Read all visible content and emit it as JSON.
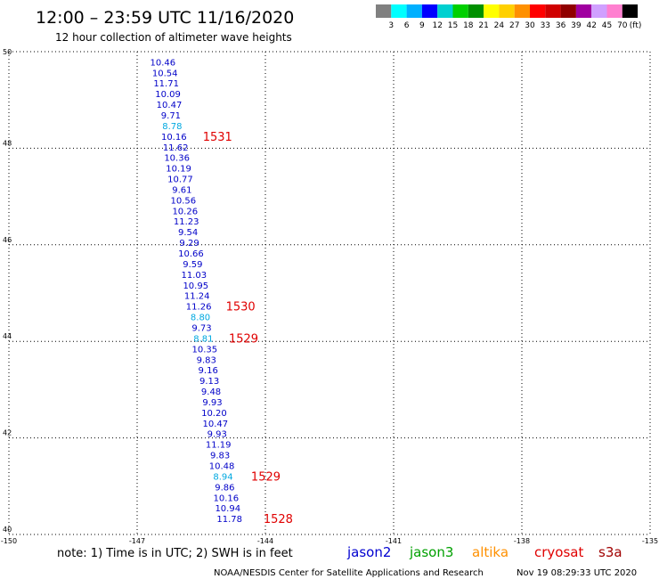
{
  "header": {
    "title": "12:00 – 23:59 UTC 11/16/2020",
    "subtitle": "12 hour collection of altimeter wave heights"
  },
  "colorbar": {
    "swatches": [
      "#808080",
      "#00ffff",
      "#00b0ff",
      "#0000ff",
      "#00d0d0",
      "#00d000",
      "#009000",
      "#ffff00",
      "#ffd000",
      "#ff9000",
      "#ff0000",
      "#d00000",
      "#900000",
      "#a000a0",
      "#d0a0ff",
      "#ff80d0",
      "#000000"
    ],
    "labels": [
      "3",
      "6",
      "9",
      "12",
      "15",
      "18",
      "21",
      "24",
      "27",
      "30",
      "33",
      "36",
      "39",
      "42",
      "45",
      "70"
    ],
    "unit": "(ft)"
  },
  "chart_data": {
    "type": "scatter",
    "xlim": [
      -150,
      -135
    ],
    "ylim": [
      40,
      50
    ],
    "x_ticks": [
      "-150",
      "-147",
      "-144",
      "-141",
      "-138",
      "-135"
    ],
    "y_ticks": [
      "50",
      "48",
      "46",
      "44",
      "42",
      "40"
    ],
    "grid": true,
    "points": [
      {
        "lon": -146.4,
        "lat": 49.79,
        "label": "10.46",
        "color": "#0000c8"
      },
      {
        "lon": -146.35,
        "lat": 49.57,
        "label": "10.54",
        "color": "#0000c8"
      },
      {
        "lon": -146.32,
        "lat": 49.35,
        "label": "11.71",
        "color": "#0000c8"
      },
      {
        "lon": -146.28,
        "lat": 49.13,
        "label": "10.09",
        "color": "#0000c8"
      },
      {
        "lon": -146.25,
        "lat": 48.91,
        "label": "10.47",
        "color": "#0000c8"
      },
      {
        "lon": -146.21,
        "lat": 48.69,
        "label": "9.71",
        "color": "#0000c8"
      },
      {
        "lon": -146.18,
        "lat": 48.47,
        "label": "8.78",
        "color": "#00a8e0"
      },
      {
        "lon": -146.14,
        "lat": 48.25,
        "label": "10.16",
        "color": "#0000c8"
      },
      {
        "lon": -146.1,
        "lat": 48.03,
        "label": "11.62",
        "color": "#0000c8"
      },
      {
        "lon": -146.07,
        "lat": 47.81,
        "label": "10.36",
        "color": "#0000c8"
      },
      {
        "lon": -146.03,
        "lat": 47.59,
        "label": "10.19",
        "color": "#0000c8"
      },
      {
        "lon": -145.99,
        "lat": 47.37,
        "label": "10.77",
        "color": "#0000c8"
      },
      {
        "lon": -145.95,
        "lat": 47.15,
        "label": "9.61",
        "color": "#0000c8"
      },
      {
        "lon": -145.92,
        "lat": 46.93,
        "label": "10.56",
        "color": "#0000c8"
      },
      {
        "lon": -145.88,
        "lat": 46.71,
        "label": "10.26",
        "color": "#0000c8"
      },
      {
        "lon": -145.85,
        "lat": 46.49,
        "label": "11.23",
        "color": "#0000c8"
      },
      {
        "lon": -145.81,
        "lat": 46.27,
        "label": "9.54",
        "color": "#0000c8"
      },
      {
        "lon": -145.78,
        "lat": 46.05,
        "label": "9.29",
        "color": "#0000c8"
      },
      {
        "lon": -145.74,
        "lat": 45.83,
        "label": "10.66",
        "color": "#0000c8"
      },
      {
        "lon": -145.7,
        "lat": 45.61,
        "label": "9.59",
        "color": "#0000c8"
      },
      {
        "lon": -145.67,
        "lat": 45.39,
        "label": "11.03",
        "color": "#0000c8"
      },
      {
        "lon": -145.63,
        "lat": 45.17,
        "label": "10.95",
        "color": "#0000c8"
      },
      {
        "lon": -145.6,
        "lat": 44.95,
        "label": "11.24",
        "color": "#0000c8"
      },
      {
        "lon": -145.56,
        "lat": 44.73,
        "label": "11.26",
        "color": "#0000c8"
      },
      {
        "lon": -145.52,
        "lat": 44.51,
        "label": "8.80",
        "color": "#00a8e0"
      },
      {
        "lon": -145.49,
        "lat": 44.29,
        "label": "9.73",
        "color": "#0000c8"
      },
      {
        "lon": -145.45,
        "lat": 44.07,
        "label": "8.81",
        "color": "#00a8e0"
      },
      {
        "lon": -145.42,
        "lat": 43.85,
        "label": "10.35",
        "color": "#0000c8"
      },
      {
        "lon": -145.38,
        "lat": 43.63,
        "label": "9.83",
        "color": "#0000c8"
      },
      {
        "lon": -145.34,
        "lat": 43.41,
        "label": "9.16",
        "color": "#0000c8"
      },
      {
        "lon": -145.31,
        "lat": 43.19,
        "label": "9.13",
        "color": "#0000c8"
      },
      {
        "lon": -145.27,
        "lat": 42.97,
        "label": "9.48",
        "color": "#0000c8"
      },
      {
        "lon": -145.24,
        "lat": 42.75,
        "label": "9.93",
        "color": "#0000c8"
      },
      {
        "lon": -145.2,
        "lat": 42.53,
        "label": "10.20",
        "color": "#0000c8"
      },
      {
        "lon": -145.17,
        "lat": 42.31,
        "label": "10.47",
        "color": "#0000c8"
      },
      {
        "lon": -145.13,
        "lat": 42.09,
        "label": "9.93",
        "color": "#0000c8"
      },
      {
        "lon": -145.1,
        "lat": 41.87,
        "label": "11.19",
        "color": "#0000c8"
      },
      {
        "lon": -145.06,
        "lat": 41.65,
        "label": "9.83",
        "color": "#0000c8"
      },
      {
        "lon": -145.02,
        "lat": 41.43,
        "label": "10.48",
        "color": "#0000c8"
      },
      {
        "lon": -144.99,
        "lat": 41.21,
        "label": "8.94",
        "color": "#00a8e0"
      },
      {
        "lon": -144.95,
        "lat": 40.99,
        "label": "9.86",
        "color": "#0000c8"
      },
      {
        "lon": -144.92,
        "lat": 40.77,
        "label": "10.16",
        "color": "#0000c8"
      },
      {
        "lon": -144.88,
        "lat": 40.55,
        "label": "10.94",
        "color": "#0000c8"
      },
      {
        "lon": -144.84,
        "lat": 40.33,
        "label": "11.78",
        "color": "#0000c8"
      }
    ],
    "time_labels": [
      {
        "lon": -145.12,
        "lat": 48.25,
        "label": "1531",
        "color": "#e00000"
      },
      {
        "lon": -144.58,
        "lat": 44.73,
        "label": "1530",
        "color": "#e00000"
      },
      {
        "lon": -144.51,
        "lat": 44.07,
        "label": "1529",
        "color": "#e00000"
      },
      {
        "lon": -143.99,
        "lat": 41.21,
        "label": "1529",
        "color": "#e00000"
      },
      {
        "lon": -143.7,
        "lat": 40.33,
        "label": "1528",
        "color": "#e00000"
      }
    ]
  },
  "footer": {
    "note": "note:  1) Time is in UTC;  2) SWH is in feet",
    "legend": [
      {
        "name": "jason2",
        "color": "#0000d0"
      },
      {
        "name": "jason3",
        "color": "#00a000"
      },
      {
        "name": "altika",
        "color": "#ff9000"
      },
      {
        "name": "cryosat",
        "color": "#e00000"
      },
      {
        "name": "s3a",
        "color": "#a00000"
      }
    ],
    "credit": "NOAA/NESDIS Center for Satellite Applications and Research",
    "timestamp": "Nov 19 08:29:33 UTC 2020"
  }
}
